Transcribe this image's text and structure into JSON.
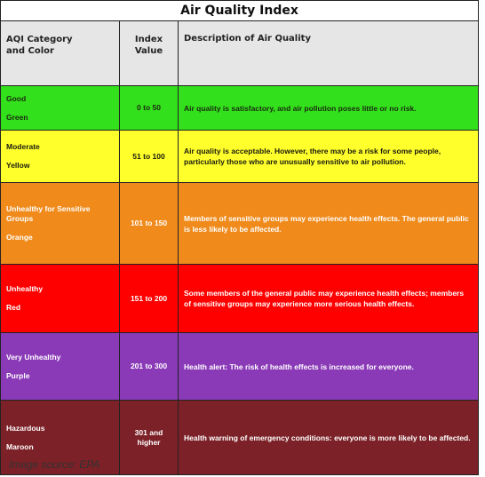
{
  "title": "Air Quality Index",
  "headers": {
    "category": [
      "AQI Category",
      "and Color"
    ],
    "index": [
      "Index",
      "Value"
    ],
    "description": "Description of Air Quality"
  },
  "rows": [
    {
      "category": "Good",
      "color_name": "Green",
      "index": "0 to 50",
      "description": "Air quality is satisfactory, and air pollution poses little or no risk.",
      "bg": "#33e01c",
      "text_color": "#1a2a10"
    },
    {
      "category": "Moderate",
      "color_name": "Yellow",
      "index": "51 to 100",
      "description": "Air quality is acceptable. However, there may be a risk for some people, particularly those who are unusually sensitive to air pollution.",
      "bg": "#ffff2b",
      "text_color": "#1a1a10"
    },
    {
      "category": "Unhealthy for Sensitive Groups",
      "color_name": "Orange",
      "index": "101 to 150",
      "description": "Members of sensitive groups may experience health effects. The general public is less likely to be affected.",
      "bg": "#ef8a1b",
      "text_color": "#ffffff"
    },
    {
      "category": "Unhealthy",
      "color_name": "Red",
      "index": "151 to 200",
      "description": "Some members of the general public may experience health effects; members of sensitive groups may experience more serious health effects.",
      "bg": "#fe0000",
      "text_color": "#ffffff"
    },
    {
      "category": "Very Unhealthy",
      "color_name": "Purple",
      "index": "201 to 300",
      "description": "Health alert: The risk of health effects is increased for everyone.",
      "bg": "#8a3ab7",
      "text_color": "#ffffff"
    },
    {
      "category": "Hazardous",
      "color_name": "Maroon",
      "index": "301 and higher",
      "description": "Health warning of emergency conditions: everyone is more likely to be affected.",
      "bg": "#7b2127",
      "text_color": "#ffffff"
    }
  ],
  "caption": "Image source:  EPA"
}
